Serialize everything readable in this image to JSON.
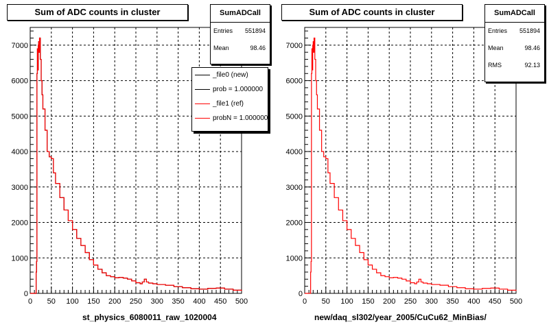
{
  "colors": {
    "new": "#000000",
    "ref": "#ff0000"
  },
  "left_pad": {
    "title": "Sum of ADC counts in cluster",
    "stats": {
      "name": "SumADCall",
      "entries_label": "Entries",
      "entries": "551894",
      "mean_label": "Mean",
      "mean": "98.46"
    },
    "legend": [
      {
        "label": "_file0 (new)",
        "color": "#000000"
      },
      {
        "label": "prob = 1.000000",
        "color": "#000000"
      },
      {
        "label": "_file1 (ref)",
        "color": "#ff0000"
      },
      {
        "label": "probN = 1.000000",
        "color": "#ff0000"
      }
    ],
    "xlabel": "st_physics_6080011_raw_1020004"
  },
  "right_pad": {
    "title": "Sum of ADC counts in cluster",
    "stats": {
      "name": "SumADCall",
      "entries_label": "Entries",
      "entries": "551894",
      "mean_label": "Mean",
      "mean": "98.46",
      "rms_label": "RMS",
      "rms": "92.13"
    },
    "xlabel": "new/daq_sl302/year_2005/CuCu62_MinBias/"
  },
  "chart_data": [
    {
      "type": "line",
      "title": "Sum of ADC counts in cluster",
      "xlabel": "st_physics_6080011_raw_1020004",
      "ylabel": "",
      "xlim": [
        0,
        500
      ],
      "ylim": [
        0,
        7500
      ],
      "x_ticks": [
        0,
        50,
        100,
        150,
        200,
        250,
        300,
        350,
        400,
        450,
        500
      ],
      "y_ticks": [
        0,
        1000,
        2000,
        3000,
        4000,
        5000,
        6000,
        7000
      ],
      "grid": true,
      "legend_position": "top-right",
      "series": [
        {
          "name": "_file0 (new)",
          "x": [
            0,
            12,
            13,
            14,
            15,
            16,
            17,
            18,
            19,
            20,
            21,
            22,
            24,
            26,
            28,
            30,
            35,
            40,
            45,
            50,
            55,
            60,
            70,
            80,
            90,
            100,
            110,
            120,
            130,
            140,
            150,
            160,
            170,
            180,
            190,
            200,
            210,
            220,
            230,
            240,
            250,
            260,
            265,
            270,
            275,
            280,
            290,
            300,
            320,
            340,
            360,
            380,
            400,
            420,
            440,
            460,
            480,
            500
          ],
          "y": [
            0,
            0,
            0,
            600,
            900,
            6200,
            6900,
            6300,
            7000,
            7100,
            6800,
            7200,
            6600,
            6000,
            5600,
            5200,
            4600,
            4000,
            3850,
            3800,
            3400,
            3100,
            2700,
            2350,
            2050,
            1800,
            1550,
            1350,
            1150,
            950,
            800,
            680,
            580,
            500,
            470,
            440,
            450,
            430,
            400,
            350,
            300,
            270,
            320,
            400,
            320,
            290,
            270,
            250,
            230,
            190,
            160,
            130,
            120,
            140,
            150,
            120,
            90,
            70
          ]
        },
        {
          "name": "_file1 (ref)",
          "x": [
            0,
            12,
            13,
            14,
            15,
            16,
            17,
            18,
            19,
            20,
            21,
            22,
            24,
            26,
            28,
            30,
            35,
            40,
            45,
            50,
            55,
            60,
            70,
            80,
            90,
            100,
            110,
            120,
            130,
            140,
            150,
            160,
            170,
            180,
            190,
            200,
            210,
            220,
            230,
            240,
            250,
            260,
            265,
            270,
            275,
            280,
            290,
            300,
            320,
            340,
            360,
            380,
            400,
            420,
            440,
            460,
            480,
            500
          ],
          "y": [
            0,
            0,
            0,
            600,
            900,
            6200,
            6900,
            6300,
            7000,
            7100,
            6800,
            7200,
            6600,
            6000,
            5600,
            5200,
            4600,
            4000,
            3850,
            3800,
            3400,
            3100,
            2700,
            2350,
            2050,
            1800,
            1550,
            1350,
            1150,
            950,
            800,
            680,
            580,
            500,
            470,
            440,
            450,
            430,
            400,
            350,
            300,
            270,
            320,
            400,
            320,
            290,
            270,
            250,
            230,
            190,
            160,
            130,
            120,
            140,
            150,
            120,
            90,
            70
          ]
        }
      ]
    },
    {
      "type": "line",
      "title": "Sum of ADC counts in cluster",
      "xlabel": "new/daq_sl302/year_2005/CuCu62_MinBias/",
      "ylabel": "",
      "xlim": [
        0,
        500
      ],
      "ylim": [
        0,
        7500
      ],
      "x_ticks": [
        0,
        50,
        100,
        150,
        200,
        250,
        300,
        350,
        400,
        450,
        500
      ],
      "y_ticks": [
        0,
        1000,
        2000,
        3000,
        4000,
        5000,
        6000,
        7000
      ],
      "grid": true,
      "series": [
        {
          "name": "SumADCall",
          "x": [
            0,
            12,
            13,
            14,
            15,
            16,
            17,
            18,
            19,
            20,
            21,
            22,
            24,
            26,
            28,
            30,
            35,
            40,
            45,
            50,
            55,
            60,
            70,
            80,
            90,
            100,
            110,
            120,
            130,
            140,
            150,
            160,
            170,
            180,
            190,
            200,
            210,
            220,
            230,
            240,
            250,
            260,
            265,
            270,
            275,
            280,
            290,
            300,
            320,
            340,
            360,
            380,
            400,
            420,
            440,
            460,
            480,
            500
          ],
          "y": [
            0,
            0,
            0,
            600,
            900,
            6200,
            6900,
            6300,
            7000,
            7100,
            6800,
            7200,
            6600,
            6000,
            5600,
            5200,
            4600,
            4000,
            3850,
            3800,
            3400,
            3100,
            2700,
            2350,
            2050,
            1800,
            1550,
            1350,
            1150,
            950,
            800,
            680,
            580,
            500,
            470,
            440,
            450,
            430,
            400,
            350,
            300,
            270,
            320,
            400,
            320,
            290,
            270,
            250,
            230,
            190,
            160,
            130,
            120,
            140,
            150,
            120,
            90,
            70
          ]
        }
      ]
    }
  ]
}
